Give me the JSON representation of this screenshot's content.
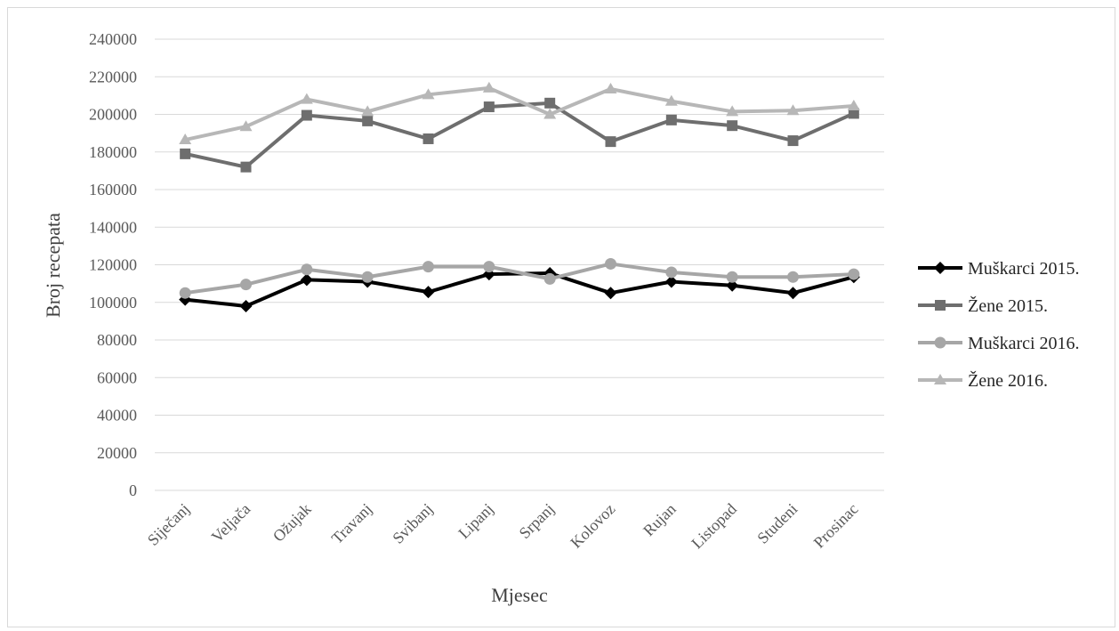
{
  "chart_data": {
    "type": "line",
    "xlabel": "Mjesec",
    "ylabel": "Broj recepata",
    "ylim": [
      0,
      240000
    ],
    "ytick_step": 20000,
    "grid": true,
    "legend_position": "right",
    "categories": [
      "Siječanj",
      "Veljača",
      "Ožujak",
      "Travanj",
      "Svibanj",
      "Lipanj",
      "Srpanj",
      "Kolovoz",
      "Rujan",
      "Listopad",
      "Studeni",
      "Prosinac"
    ],
    "series": [
      {
        "name": "Muškarci 2015.",
        "color": "#000000",
        "marker": "diamond",
        "values": [
          101500,
          98000,
          112000,
          111000,
          105500,
          115000,
          115500,
          105000,
          111000,
          109000,
          105000,
          113500
        ]
      },
      {
        "name": "Žene 2015.",
        "color": "#6e6e6e",
        "marker": "square",
        "values": [
          179000,
          172000,
          199500,
          196500,
          187000,
          204000,
          206000,
          185500,
          197000,
          194000,
          186000,
          200500
        ]
      },
      {
        "name": "Muškarci 2016.",
        "color": "#a6a6a6",
        "marker": "circle",
        "values": [
          105000,
          109500,
          117500,
          113500,
          119000,
          119000,
          112500,
          120500,
          116000,
          113500,
          113500,
          115000
        ]
      },
      {
        "name": "Žene 2016.",
        "color": "#b7b7b7",
        "marker": "triangle",
        "values": [
          186500,
          193500,
          208000,
          201500,
          210500,
          214000,
          200000,
          213500,
          207000,
          201500,
          202000,
          204500
        ]
      }
    ]
  }
}
